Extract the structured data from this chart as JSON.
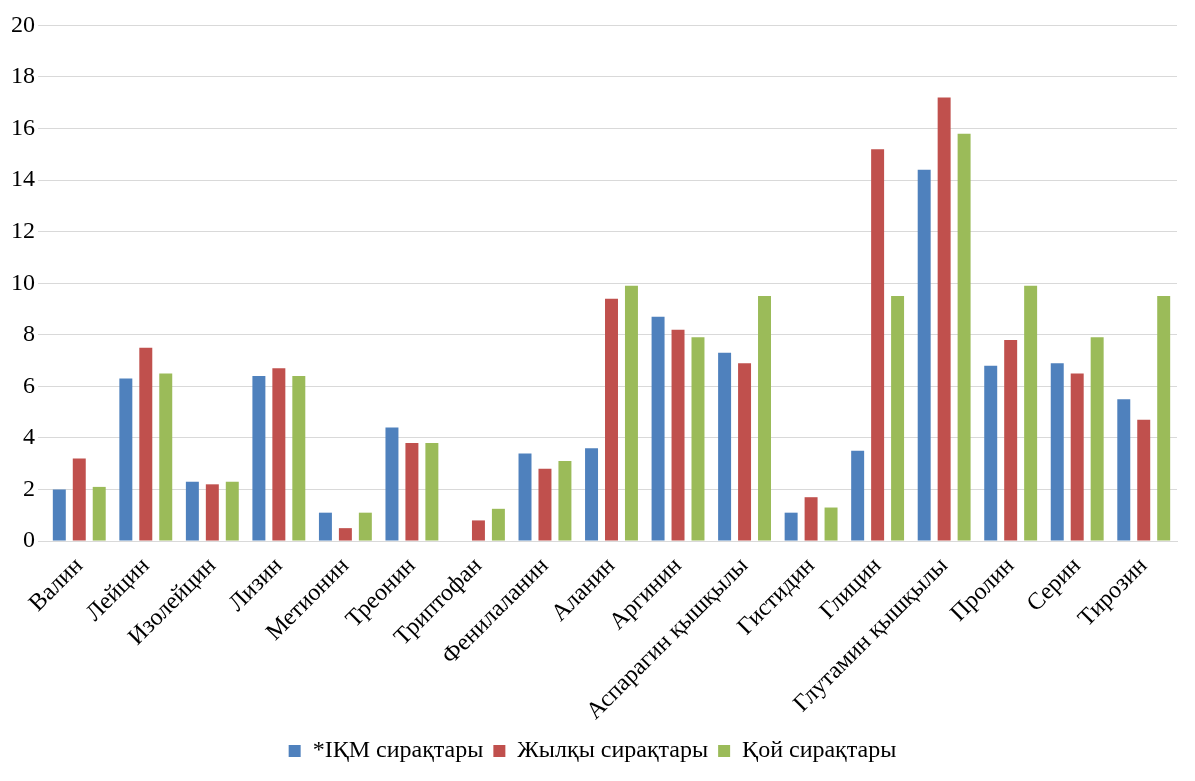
{
  "chart_data": {
    "type": "bar",
    "categories": [
      "Валин",
      "Лейцин",
      "Изолейцин",
      "Лизин",
      "Метионин",
      "Треонин",
      "Триптофан",
      "Фенилаланин",
      "Аланин",
      "Аргинин",
      "Аспарагин қышқылы",
      "Гистидин",
      "Глицин",
      "Глутамин қышқылы",
      "Пролин",
      "Серин",
      "Тирозин"
    ],
    "series": [
      {
        "name": "*ІҚМ сирақтары",
        "color": "#4f81bd",
        "values": [
          2.0,
          6.3,
          2.3,
          6.4,
          1.1,
          4.4,
          null,
          3.4,
          3.6,
          8.7,
          7.3,
          1.1,
          3.5,
          14.4,
          6.8,
          6.9,
          5.5
        ]
      },
      {
        "name": "Жылқы сирақтары",
        "color": "#c0504d",
        "values": [
          3.2,
          7.5,
          2.2,
          6.7,
          0.5,
          3.8,
          0.8,
          2.8,
          9.4,
          8.2,
          6.9,
          1.7,
          15.2,
          17.2,
          7.8,
          6.5,
          4.7
        ]
      },
      {
        "name": "Қой сирақтары",
        "color": "#9bbb59",
        "values": [
          2.1,
          6.5,
          2.3,
          6.4,
          1.1,
          3.8,
          1.25,
          3.1,
          9.9,
          7.9,
          9.5,
          1.3,
          9.5,
          15.8,
          9.9,
          7.9,
          9.5
        ]
      }
    ],
    "ylim": [
      0,
      20
    ],
    "yticks": [
      0,
      2,
      4,
      6,
      8,
      10,
      12,
      14,
      16,
      18,
      20
    ],
    "grid": "y",
    "legend": "bottom"
  }
}
